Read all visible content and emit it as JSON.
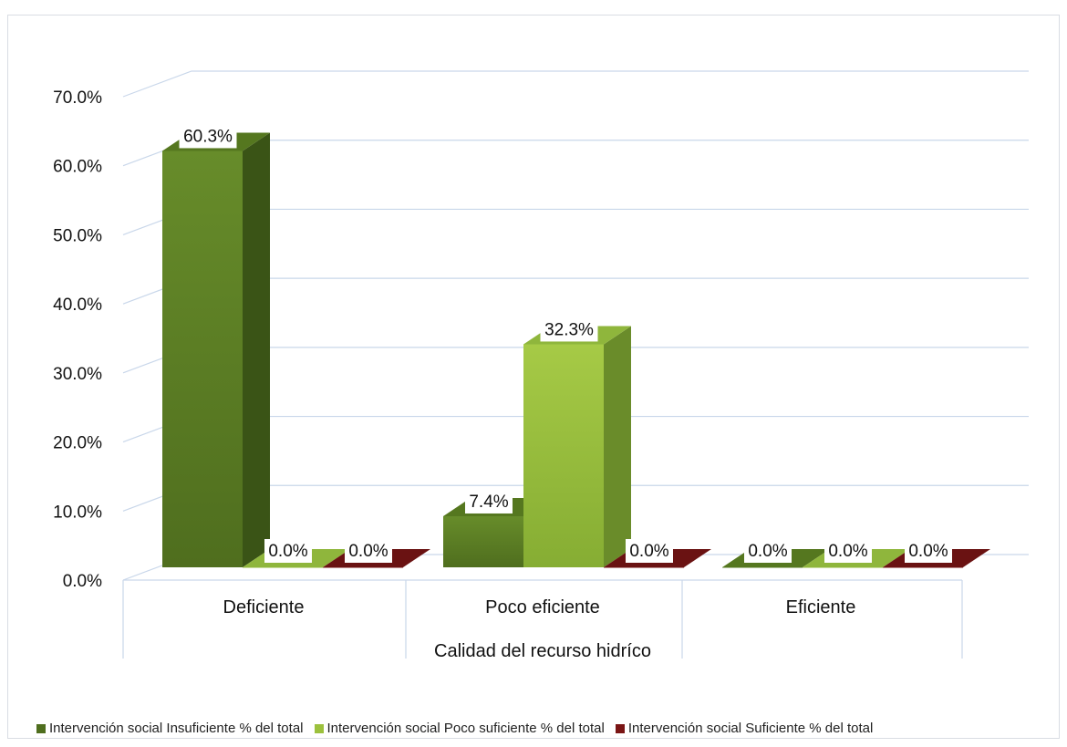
{
  "chart_data": {
    "type": "bar",
    "title": "",
    "xlabel": "Calidad del recurso hidríco",
    "ylabel": "",
    "categories": [
      "Deficiente",
      "Poco eficiente",
      "Eficiente"
    ],
    "ylim": [
      0,
      70
    ],
    "yticks": [
      "0.0%",
      "10.0%",
      "20.0%",
      "30.0%",
      "40.0%",
      "50.0%",
      "60.0%",
      "70.0%"
    ],
    "grid": true,
    "legend_position": "bottom",
    "series": [
      {
        "name": "Intervención social Insuficiente % del total",
        "values": [
          60.3,
          7.4,
          0.0
        ],
        "labels": [
          "60.3%",
          "7.4%",
          "0.0%"
        ],
        "color": "#5a7d22"
      },
      {
        "name": "Intervención social Poco suficiente % del total",
        "values": [
          0.0,
          32.3,
          0.0
        ],
        "labels": [
          "0.0%",
          "32.3%",
          "0.0%"
        ],
        "color": "#9cc13d"
      },
      {
        "name": "Intervención social Suficiente % del total",
        "values": [
          0.0,
          0.0,
          0.0
        ],
        "labels": [
          "0.0%",
          "0.0%",
          "0.0%"
        ],
        "color": "#7a1515"
      }
    ]
  }
}
